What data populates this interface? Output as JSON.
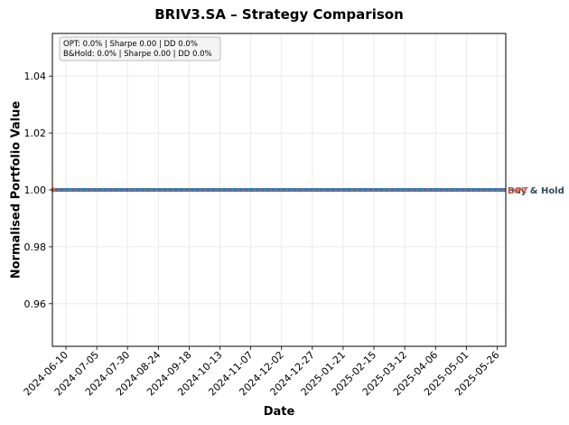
{
  "chart_data": {
    "type": "line",
    "title": "BRIV3.SA – Strategy Comparison",
    "xlabel": "Date",
    "ylabel": "Normalised Portfolio Value",
    "x_range": [
      "2024-05-30",
      "2025-06-02"
    ],
    "ylim": [
      0.945,
      1.055
    ],
    "x_ticks": [
      "2024-06-10",
      "2024-07-05",
      "2024-07-30",
      "2024-08-24",
      "2024-09-18",
      "2024-10-13",
      "2024-11-07",
      "2024-12-02",
      "2024-12-27",
      "2025-01-21",
      "2025-02-15",
      "2025-03-12",
      "2025-04-06",
      "2025-05-01",
      "2025-05-26"
    ],
    "y_ticks": [
      "0.96",
      "0.98",
      "1.00",
      "1.02",
      "1.04"
    ],
    "y_tick_values": [
      0.96,
      0.98,
      1.0,
      1.02,
      1.04
    ],
    "grid": true,
    "stats_box": {
      "line1": "OPT: 0.0% | Sharpe 0.00 | DD 0.0%",
      "line2": "B&Hold: 0.0% | Sharpe 0.00 | DD 0.0%"
    },
    "series": [
      {
        "name": "Buy & Hold",
        "end_label": "Buy & Hold",
        "color": "#2e4a5e",
        "line_color": "#3a76a8",
        "x": [
          "2024-05-30",
          "2025-06-02"
        ],
        "y": [
          1.0,
          1.0
        ]
      },
      {
        "name": "OPT",
        "end_label": "OPT",
        "color": "#e0604a",
        "line_color": "#e0604a",
        "x": [
          "2024-05-30",
          "2025-06-02"
        ],
        "y": [
          1.0,
          1.0
        ]
      }
    ]
  }
}
